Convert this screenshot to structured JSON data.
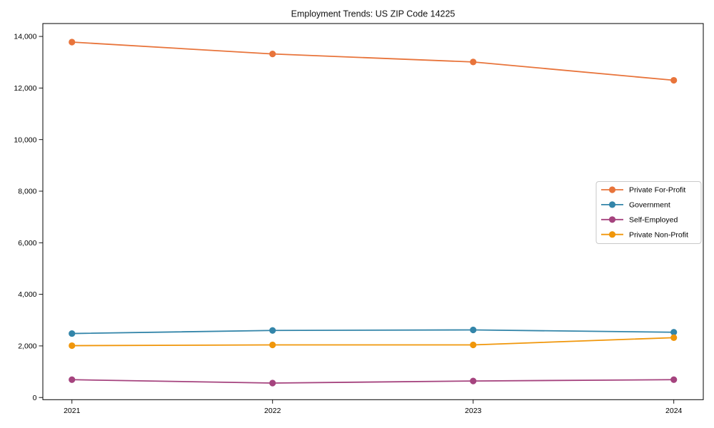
{
  "chart_data": {
    "type": "line",
    "title": "Employment Trends: US ZIP Code 14225",
    "xlabel": "",
    "ylabel": "",
    "x": [
      2021,
      2022,
      2023,
      2024
    ],
    "x_tick_labels": [
      "2021",
      "2022",
      "2023",
      "2024"
    ],
    "y_ticks": [
      0,
      2000,
      4000,
      6000,
      8000,
      10000,
      12000,
      14000
    ],
    "y_tick_labels": [
      "0",
      "2,000",
      "4,000",
      "6,000",
      "8,000",
      "10,000",
      "12,000",
      "14,000"
    ],
    "xlim": [
      2020.855,
      2024.147
    ],
    "ylim": [
      -85,
      14500
    ],
    "grid": false,
    "legend_position": "center right",
    "series": [
      {
        "name": "Private For-Profit",
        "color": "#E8743B",
        "values": [
          13780,
          13320,
          13010,
          12300
        ]
      },
      {
        "name": "Government",
        "color": "#3385A9",
        "values": [
          2480,
          2600,
          2620,
          2530
        ]
      },
      {
        "name": "Self-Employed",
        "color": "#A5437E",
        "values": [
          690,
          560,
          640,
          690
        ]
      },
      {
        "name": "Private Non-Profit",
        "color": "#F0960A",
        "values": [
          2010,
          2040,
          2040,
          2320
        ]
      }
    ],
    "colors": {
      "spine": "#000000",
      "legend_border": "#c9c9c9",
      "background": "#ffffff"
    }
  }
}
